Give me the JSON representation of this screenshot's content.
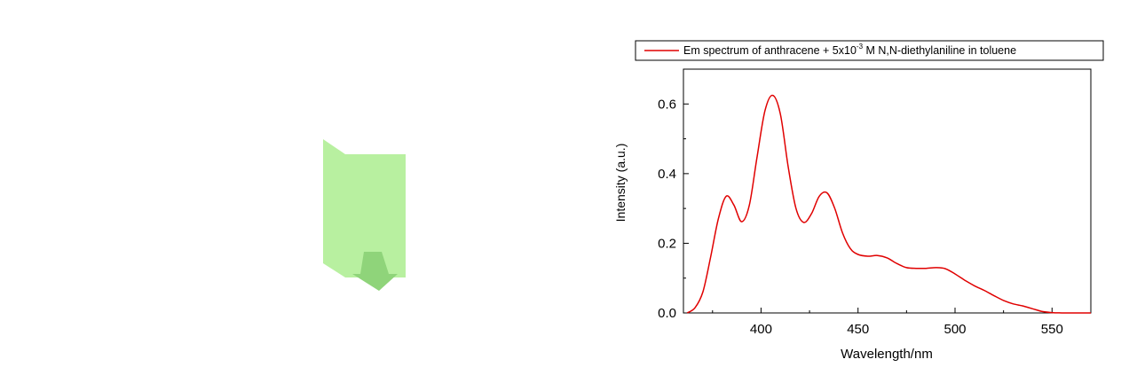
{
  "colors": {
    "background": "#ffffff",
    "series_line": "#e00000",
    "axis": "#000000",
    "cuvette_fill": "#b8f0a0",
    "arrow_fill": "#8fd47a"
  },
  "illustration": {
    "description_icon": "cuvette-with-down-arrow-icon"
  },
  "chart_data": {
    "type": "line",
    "xlabel": "Wavelength/nm",
    "ylabel": "Intensity (a.u.)",
    "xlim": [
      360,
      570
    ],
    "ylim": [
      0.0,
      0.7
    ],
    "xticks": [
      400,
      450,
      500,
      550
    ],
    "xtick_labels": [
      "400",
      "450",
      "500",
      "550"
    ],
    "yticks": [
      0.0,
      0.2,
      0.4,
      0.6
    ],
    "ytick_labels": [
      "0.0",
      "0.2",
      "0.4",
      "0.6"
    ],
    "legend": {
      "placement": "top",
      "prefix": "Em spectrum of anthracene + 5x10",
      "superscript": "-3",
      "suffix": " M N,N-diethylaniline in toluene"
    },
    "grid": false,
    "series": [
      {
        "color": "#e00000",
        "x": [
          362,
          366,
          370,
          374,
          378,
          382,
          386,
          390,
          394,
          398,
          402,
          406,
          410,
          414,
          418,
          422,
          426,
          430,
          434,
          438,
          442,
          446,
          450,
          455,
          460,
          465,
          470,
          475,
          480,
          485,
          490,
          495,
          500,
          505,
          510,
          515,
          520,
          525,
          530,
          535,
          540,
          545,
          550,
          555,
          560,
          565,
          570
        ],
        "y": [
          0.0,
          0.015,
          0.06,
          0.16,
          0.27,
          0.335,
          0.31,
          0.262,
          0.31,
          0.45,
          0.58,
          0.625,
          0.57,
          0.42,
          0.3,
          0.26,
          0.285,
          0.335,
          0.345,
          0.3,
          0.23,
          0.185,
          0.168,
          0.163,
          0.165,
          0.158,
          0.142,
          0.13,
          0.128,
          0.128,
          0.13,
          0.127,
          0.112,
          0.094,
          0.078,
          0.065,
          0.05,
          0.036,
          0.026,
          0.02,
          0.012,
          0.004,
          0.001,
          0.0,
          0.0,
          0.0,
          0.0
        ]
      }
    ]
  }
}
